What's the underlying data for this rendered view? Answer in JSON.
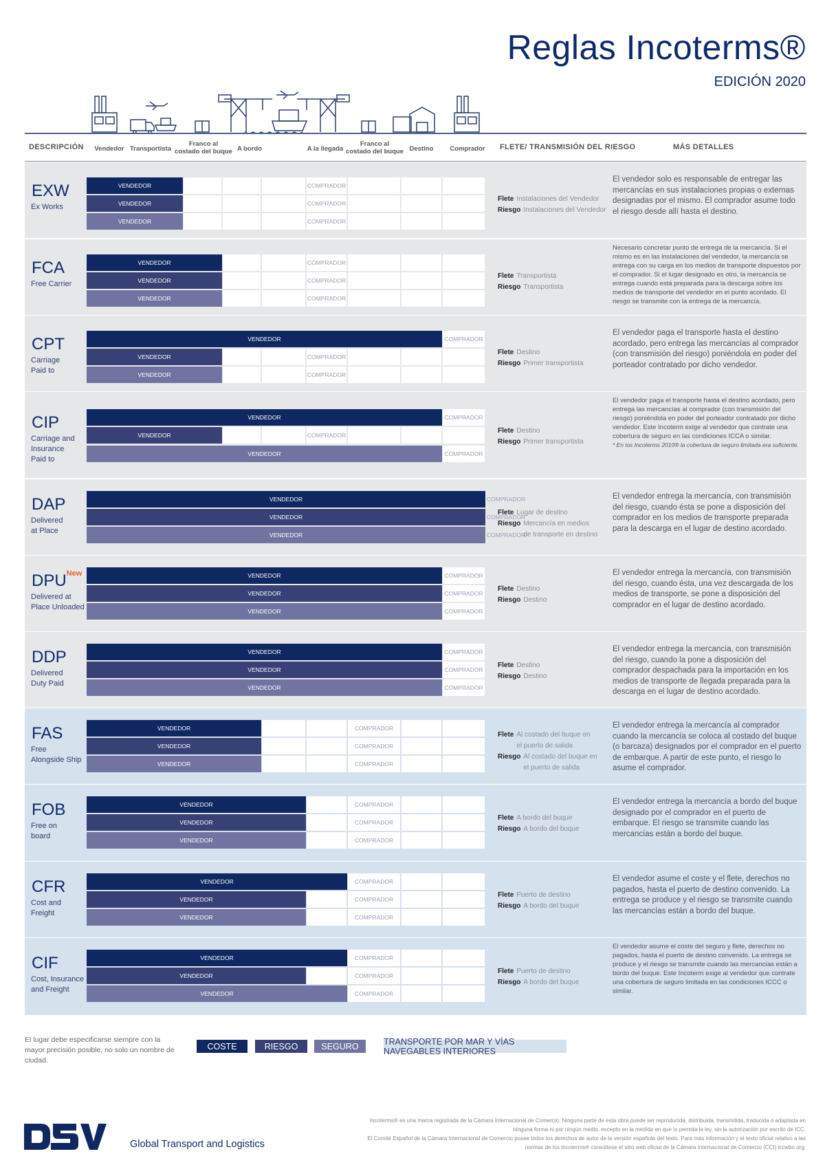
{
  "header": {
    "title": "Reglas Incoterms®",
    "edition": "EDICIÓN 2020"
  },
  "illustration_icons": [
    "factory-icon",
    "truck-icon",
    "airplane-icon",
    "cargo-ship-icon",
    "crate-icon",
    "port-crane-icon",
    "airplane-icon",
    "cargo-ship-icon",
    "port-crane-icon",
    "crate-icon",
    "warehouse-icon",
    "factory-icon"
  ],
  "columns": {
    "descripcion": "DESCRIPCIÓN",
    "vendedor": "Vendedor",
    "transportista": "Transportista",
    "franco1_l1": "Franco al",
    "franco1_l2": "costado del buque",
    "a_bordo": "A bordo",
    "a_la_llegada": "A la llegada",
    "franco2_l1": "Franco al",
    "franco2_l2": "costado del buque",
    "destino": "Destino",
    "comprador": "Comprador",
    "flete": "FLETE/ TRANSMISIÓN DEL RIESGO",
    "detalles": "MÁS DETALLES"
  },
  "labels": {
    "seller": "VENDEDOR",
    "buyer": "COMPRADOR",
    "flete": "Flete",
    "riesgo": "Riesgo"
  },
  "terms": [
    {
      "code": "EXW",
      "name_l1": "Ex Works",
      "name_l2": "",
      "name_l3": "",
      "flete": "Instalaciones del Vendedor",
      "riesgo": "Instalaciones del Vendedor",
      "riesgo_l2": "",
      "detail": "El vendedor solo es responsable de entregar las mercancías en sus instalaciones propias o externas designadas por el mismo. El comprador asume todo el riesgo desde allí hasta el destino."
    },
    {
      "code": "FCA",
      "name_l1": "Free Carrier",
      "name_l2": "",
      "name_l3": "",
      "flete": "Transportista",
      "riesgo": "Transportista",
      "riesgo_l2": "",
      "detail": "Necesario concretar punto de entrega de la mercancía. Si el mismo es en las instalaciones del vendedor, la mercancía se entrega con su carga en los medios de transporte dispuestos por el comprador. Si el lugar designado es otro, la mercancía se entrega cuando está preparada para la descarga sobre los medios de transporte del vendedor en el punto acordado. El riesgo se transmite con la entrega de la mercancía."
    },
    {
      "code": "CPT",
      "name_l1": "Carriage",
      "name_l2": "Paid to",
      "name_l3": "",
      "flete": "Destino",
      "riesgo": "Primer transportista",
      "riesgo_l2": "",
      "detail": "El vendedor paga el transporte hasta el destino acordado, pero entrega las mercancías al comprador (con transmisión del riesgo) poniéndola en poder del porteador contratado por dicho vendedor."
    },
    {
      "code": "CIP",
      "name_l1": "Carriage and",
      "name_l2": "Insurance",
      "name_l3": "Paid to",
      "flete": "Destino",
      "riesgo": "Primer transportista",
      "riesgo_l2": "",
      "detail": "El vendedor paga el transporte hasta el destino acordado, pero entrega las mercancías al comprador (con transmisión del riesgo) poniéndola en poder del porteador contratado por dicho vendedor. Este Incoterm exige al vendedor que contrate una cobertura de seguro en las condiciones ICCA o similar.",
      "note": "* En los Incoterms 2010® la cobertura de seguro limitada era suficiente."
    },
    {
      "code": "DAP",
      "name_l1": "Delivered",
      "name_l2": "at Place",
      "name_l3": "",
      "flete": "Lugar de destino",
      "riesgo": "Mercancía en medios",
      "riesgo_l2": "de transporte en destino",
      "detail": "El vendedor entrega la mercancía, con transmisión del riesgo, cuando ésta se pone a disposición del comprador en los medios de transporte preparada para la descarga en el lugar de destino acordado."
    },
    {
      "code": "DPU",
      "badge": "New",
      "name_l1": "Delivered at",
      "name_l2": "Place Unloaded",
      "name_l3": "",
      "flete": "Destino",
      "riesgo": "Destino",
      "riesgo_l2": "",
      "detail": "El vendedor entrega la mercancía, con transmisión del riesgo, cuando ésta, una vez descargada de los medios de transporte, se pone a disposición del comprador en el lugar de destino acordado."
    },
    {
      "code": "DDP",
      "name_l1": "Delivered",
      "name_l2": "Duty Paid",
      "name_l3": "",
      "flete": "Destino",
      "riesgo": "Destino",
      "riesgo_l2": "",
      "detail": "El vendedor entrega la mercancía, con transmisión del riesgo, cuando la pone a disposición del comprador despachada para la importación en los medios de transporte de llegada preparada para la descarga en el lugar de destino acordado."
    },
    {
      "code": "FAS",
      "name_l1": "Free",
      "name_l2": "Alongside Ship",
      "name_l3": "",
      "flete": "Al costado del buque en",
      "flete_l2": "el puerto de salida",
      "riesgo": "Al costado del buque en",
      "riesgo_l2": "el puerto de salida",
      "detail": "El vendedor entrega la mercancía al comprador cuando la mercancía se coloca al costado del buque (o barcaza) designados por el comprador en el puerto de embarque. A partir de este punto, el riesgo lo asume el comprador."
    },
    {
      "code": "FOB",
      "name_l1": "Free on",
      "name_l2": "board",
      "name_l3": "",
      "flete": "A bordo del buque",
      "riesgo": "A bordo del buque",
      "riesgo_l2": "",
      "detail": "El vendedor entrega la mercancía a bordo del buque designado por el comprador en el puerto de embarque. El riesgo se transmite cuando las mercancías están a bordo del buque."
    },
    {
      "code": "CFR",
      "name_l1": "Cost and",
      "name_l2": "Freight",
      "name_l3": "",
      "flete": "Puerto de destino",
      "riesgo": "A bordo del buque",
      "riesgo_l2": "",
      "detail": "El vendedor asume el coste y el flete, derechos no pagados, hasta el puerto de destino convenido. La entrega se produce y el riesgo se transmite cuando las mercancías están a bordo del buque."
    },
    {
      "code": "CIF",
      "name_l1": "Cost, Insurance",
      "name_l2": "and Freight",
      "name_l3": "",
      "flete": "Puerto de destino",
      "riesgo": "A bordo del buque",
      "riesgo_l2": "",
      "detail": "El vendedor asume el coste del seguro y flete, derechos no pagados, hasta el puerto de destino convenido. La entrega se produce y el riesgo se transmite cuando las mercancías están a bordo del buque. Este Incoterm exige al vendedor que contrate una cobertura de seguro limitada en las condiciones ICCC o similar."
    }
  ],
  "legend": {
    "note": "El lugar debe especificarse siempre con la mayor precisión posible, no solo un nombre de ciudad.",
    "coste": "COSTE",
    "riesgo": "RIESGO",
    "seguro": "SEGURO",
    "maritimo": "TRANSPORTE POR MAR Y VÍAS NAVEGABLES INTERIORES",
    "colors": {
      "coste": "#0f2862",
      "riesgo": "#374176",
      "seguro": "#7174a0",
      "maritimo": "#d5e1ed"
    }
  },
  "footer": {
    "logo": "DSV",
    "tagline": "Global Transport and Logistics",
    "legal_l1": "Incoterms® es una marca registrada de la Cámara Internacional de Comercio. Ninguna parte de esta obra puede ser reproducida, distribuida, transmitida, traducida o adaptada en",
    "legal_l2": "ninguna forma ni por ningún medio, excepto en la medida en que lo permita la ley, sin la autorización por escrito de ICC.",
    "legal_l3": "El Comité Español de la Cámara Internacional de Comercio posee todos los derechos de autor de la versión española del texto. Para más información y el texto oficial relativo a las",
    "legal_l4": "normas de los Incoterms® consúltese el sitio web oficial de la Cámara Internacional de Comercio (CCI) iccwbo.org."
  }
}
